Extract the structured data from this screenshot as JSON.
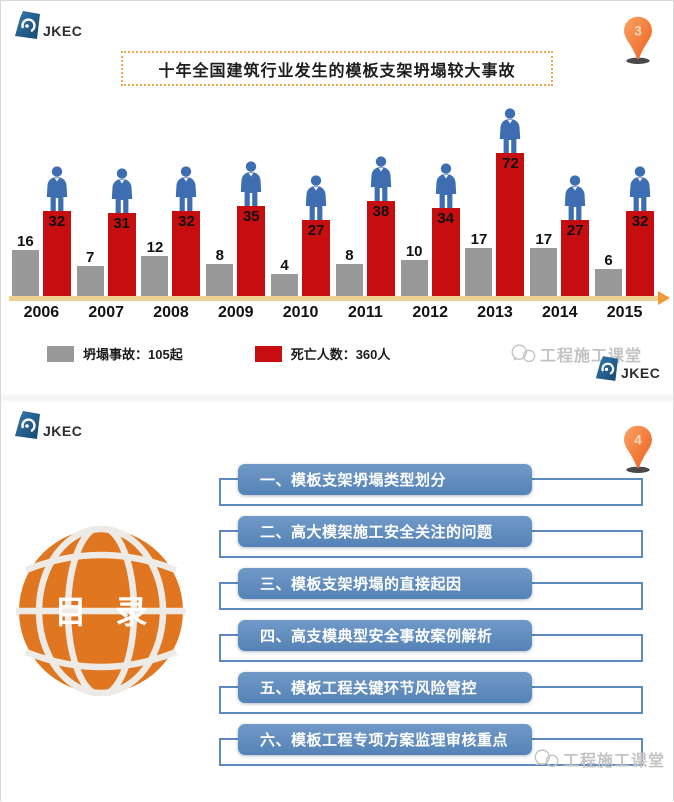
{
  "brand": {
    "logo_text": "JKEC"
  },
  "slide1": {
    "page_marker": "3",
    "title": "十年全国建筑行业发生的模板支架坍塌较大事故",
    "legend": [
      {
        "label": "坍塌事故：105起",
        "color": "#999999"
      },
      {
        "label": "死亡人数：360人",
        "color": "#c60d10"
      }
    ],
    "watermark": "工程施工课堂"
  },
  "chart_data": {
    "type": "bar",
    "title": "十年全国建筑行业发生的模板支架坍塌较大事故",
    "categories": [
      "2006",
      "2007",
      "2008",
      "2009",
      "2010",
      "2011",
      "2012",
      "2013",
      "2014",
      "2015"
    ],
    "series": [
      {
        "name": "坍塌事故",
        "unit": "起",
        "color": "#999999",
        "values": [
          16,
          7,
          12,
          8,
          4,
          8,
          10,
          17,
          17,
          6
        ],
        "total_label": "坍塌事故：105起"
      },
      {
        "name": "死亡人数",
        "unit": "人",
        "color": "#c60d10",
        "values": [
          32,
          31,
          32,
          35,
          27,
          38,
          34,
          72,
          27,
          32
        ],
        "total_label": "死亡人数：360人"
      }
    ],
    "legend_position": "bottom",
    "grid": false,
    "value_labels": true,
    "xlabel": "",
    "ylabel": ""
  },
  "slide2": {
    "page_marker": "4",
    "toc_title": "目 录",
    "items": [
      {
        "label": "一、模板支架坍塌类型划分"
      },
      {
        "label": "二、高大模架施工安全关注的问题"
      },
      {
        "label": "三、模板支架坍塌的直接起因"
      },
      {
        "label": "四、高支模典型安全事故案例解析"
      },
      {
        "label": "五、模板工程关键环节风险管控"
      },
      {
        "label": "六、模板工程专项方案监理审核重点"
      }
    ],
    "watermark": "工程施工课堂"
  },
  "colors": {
    "accident_bar": "#999999",
    "death_bar": "#c60d10",
    "axis": "#ecd193",
    "axis_arrow": "#ef9c38",
    "person": "#3e6db2",
    "toc_button": "#5583b7",
    "toc_outline": "#5d89bc",
    "globe": "#e0761f",
    "pin": "#ee5f1d",
    "title_border": "#e8a94f"
  }
}
